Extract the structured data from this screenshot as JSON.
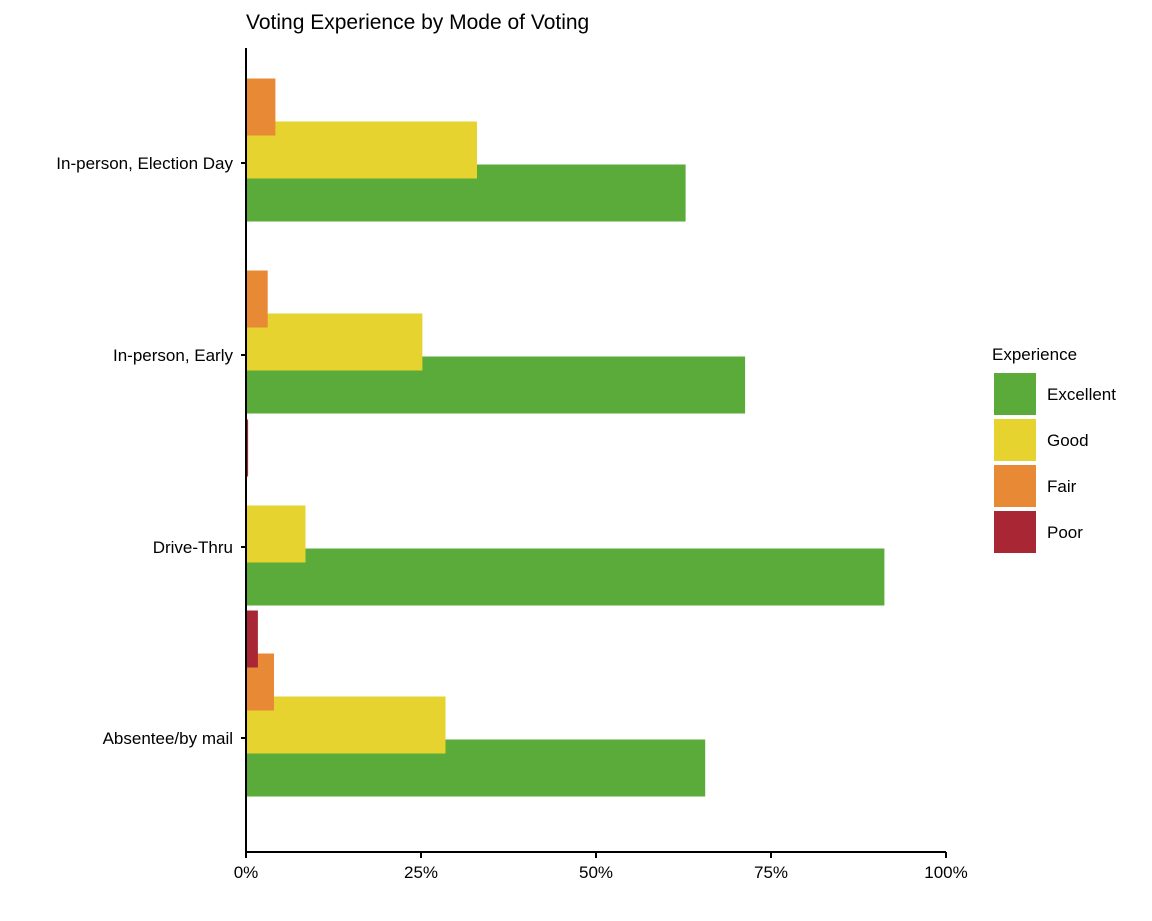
{
  "chart_data": {
    "type": "bar",
    "orientation": "horizontal",
    "title": "Voting Experience by Mode of Voting",
    "xlabel": "",
    "ylabel": "",
    "xlim": [
      0,
      100
    ],
    "x_ticks": [
      0,
      25,
      50,
      75,
      100
    ],
    "x_tick_labels": [
      "0%",
      "25%",
      "50%",
      "75%",
      "100%"
    ],
    "categories": [
      "In-person, Election Day",
      "In-person, Early",
      "Drive-Thru",
      "Absentee/by mail"
    ],
    "legend_title": "Experience",
    "legend_position": "right",
    "grid": false,
    "series": [
      {
        "name": "Excellent",
        "color": "#5aab39",
        "values": [
          62.8,
          71.3,
          91.2,
          65.6
        ]
      },
      {
        "name": "Good",
        "color": "#e6d32f",
        "values": [
          33.0,
          25.2,
          8.5,
          28.5
        ]
      },
      {
        "name": "Fair",
        "color": "#e88a35",
        "values": [
          4.2,
          3.1,
          0,
          4.0
        ]
      },
      {
        "name": "Poor",
        "color": "#a92735",
        "values": [
          0,
          0,
          0.3,
          1.7
        ]
      }
    ]
  }
}
